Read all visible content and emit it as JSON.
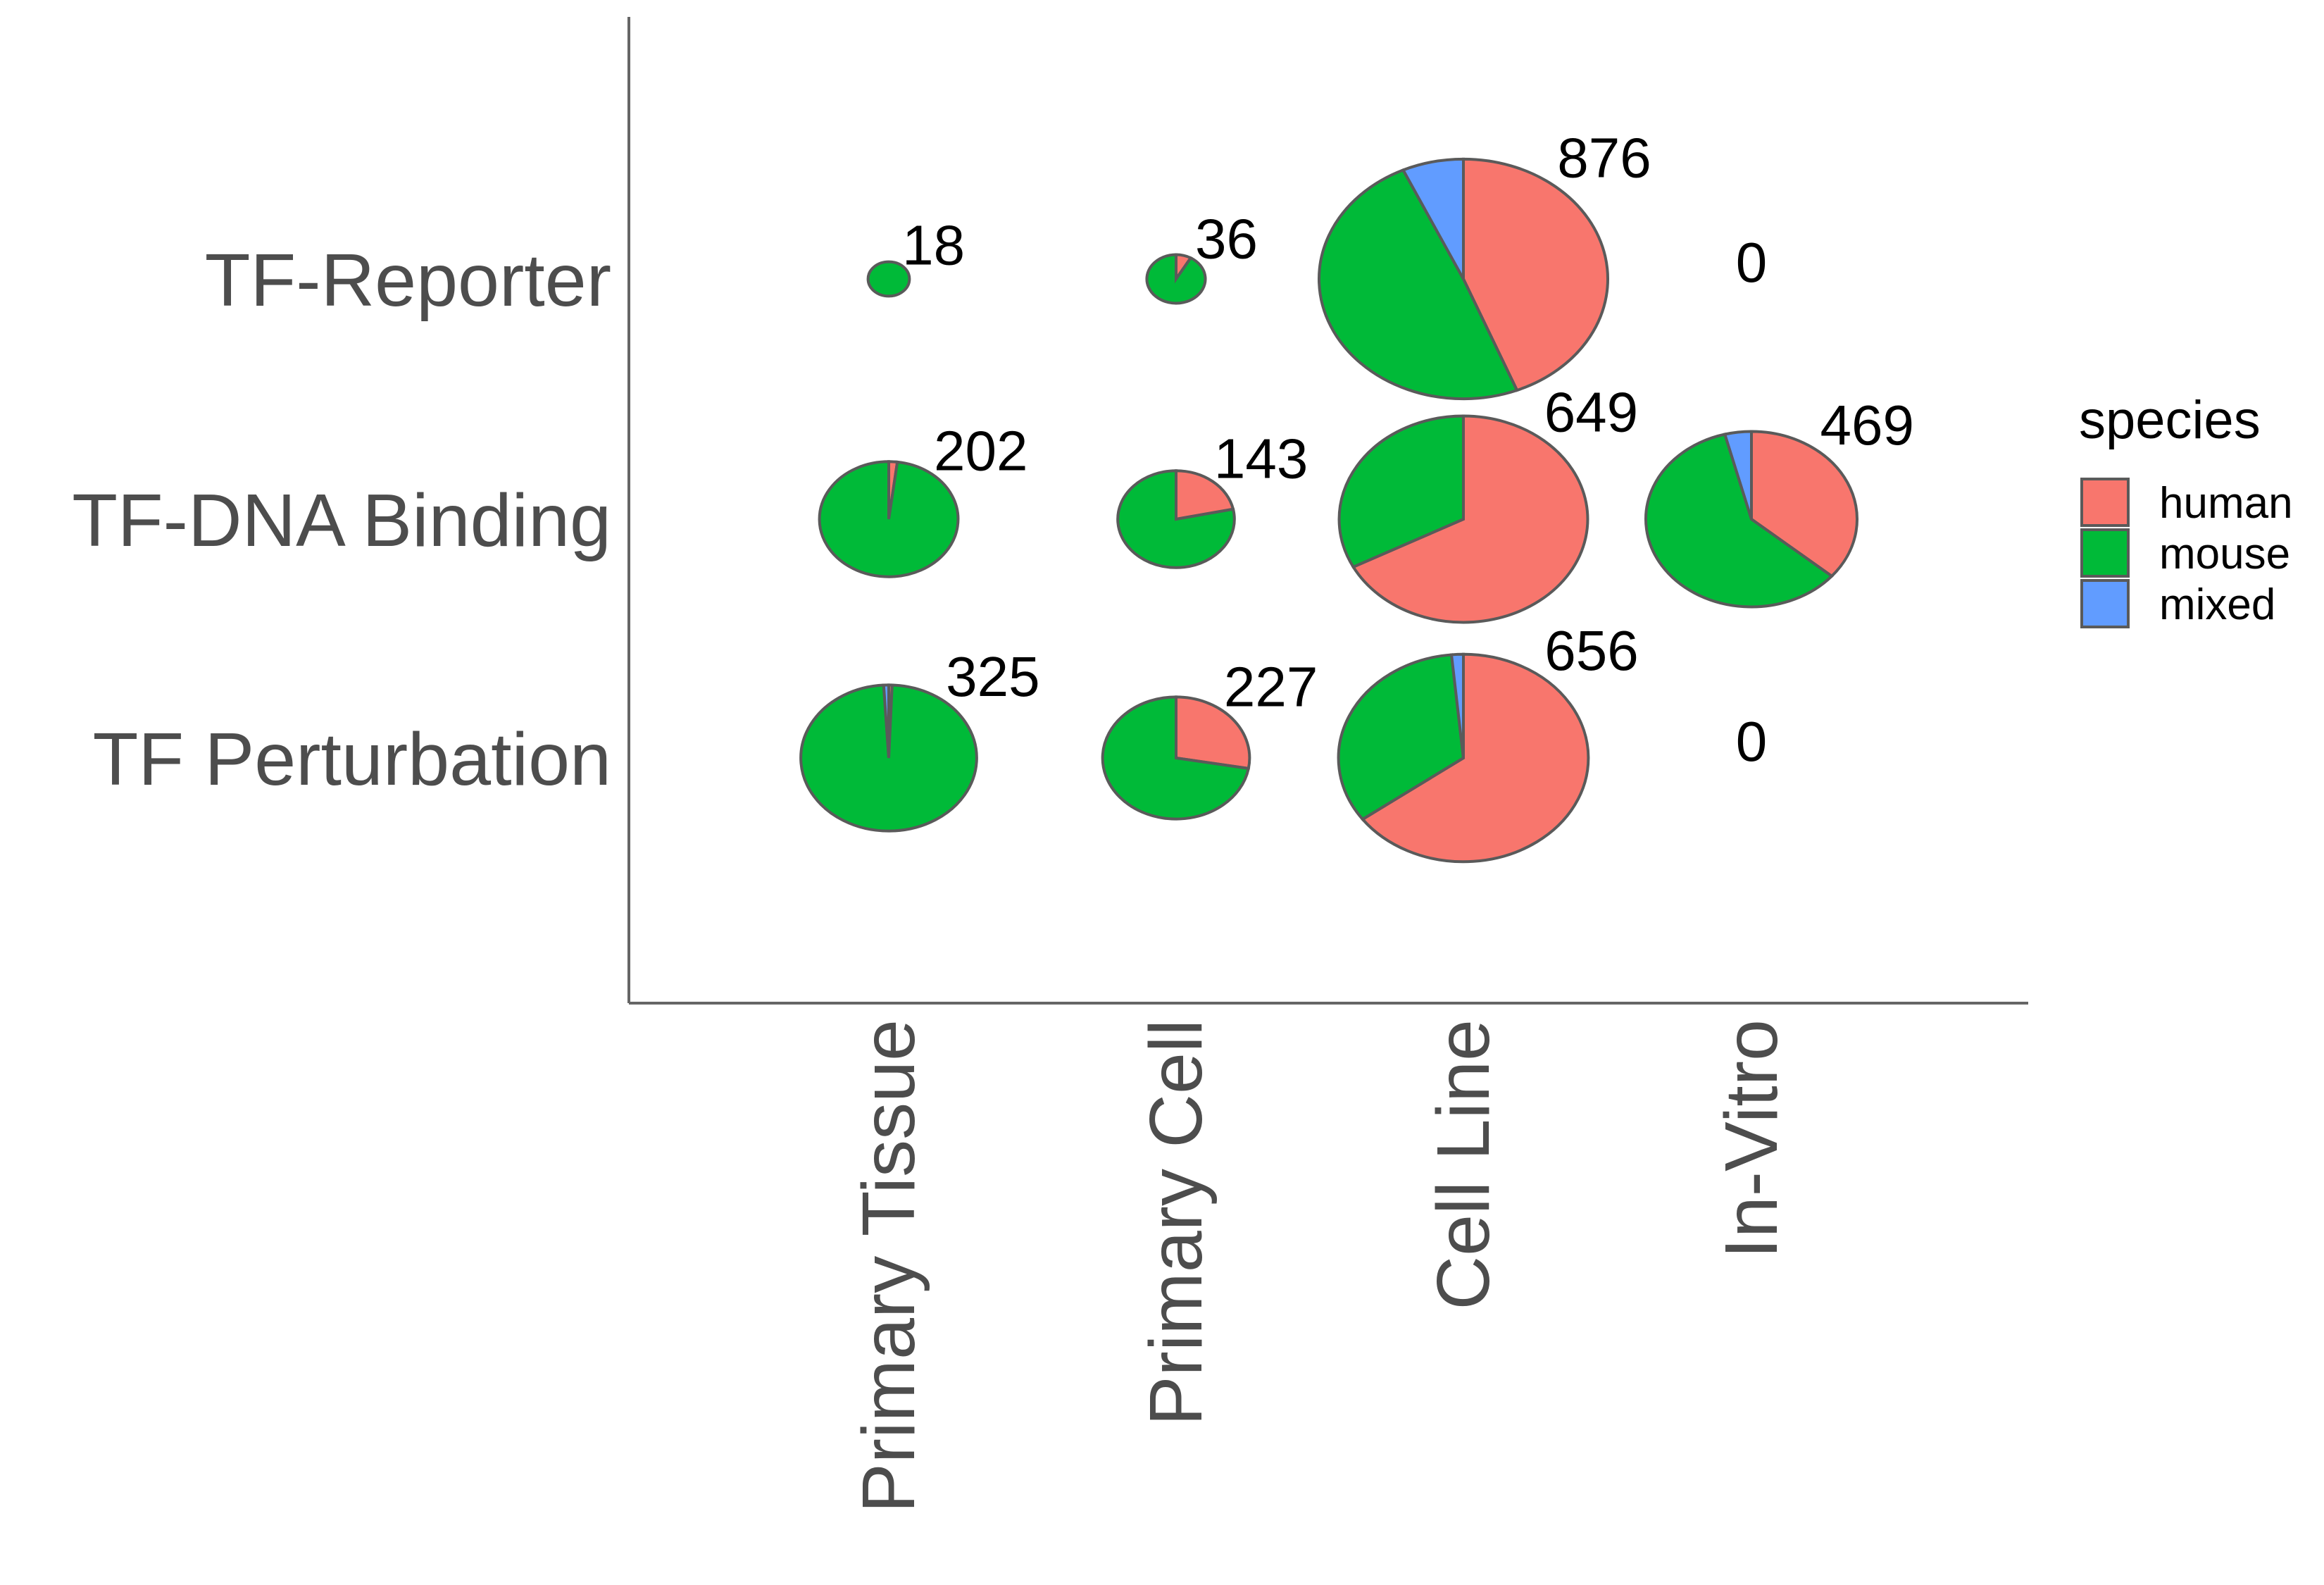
{
  "chart_data": {
    "type": "pie",
    "subtype": "pie-grid",
    "title": "",
    "xlabel": "",
    "ylabel": "",
    "x_categories": [
      "Primary Tissue",
      "Primary Cell",
      "Cell Line",
      "In-Vitro"
    ],
    "y_categories": [
      "TF-Reporter",
      "TF-DNA Binding",
      "TF Perturbation"
    ],
    "legend": {
      "title": "species",
      "position": "right",
      "entries": [
        {
          "name": "human",
          "color": "#F8766D"
        },
        {
          "name": "mouse",
          "color": "#00BA38"
        },
        {
          "name": "mixed",
          "color": "#619CFF"
        }
      ]
    },
    "cells": [
      {
        "row": "TF-Reporter",
        "col": "Primary Tissue",
        "total": 18,
        "human": 0,
        "mouse": 18,
        "mixed": 0
      },
      {
        "row": "TF-Reporter",
        "col": "Primary Cell",
        "total": 36,
        "human": 3,
        "mouse": 33,
        "mixed": 0
      },
      {
        "row": "TF-Reporter",
        "col": "Cell Line",
        "total": 876,
        "human": 385,
        "mouse": 431,
        "mixed": 60
      },
      {
        "row": "TF-Reporter",
        "col": "In-Vitro",
        "total": 0,
        "human": 0,
        "mouse": 0,
        "mixed": 0
      },
      {
        "row": "TF-DNA Binding",
        "col": "Primary Tissue",
        "total": 202,
        "human": 4,
        "mouse": 198,
        "mixed": 0
      },
      {
        "row": "TF-DNA Binding",
        "col": "Primary Cell",
        "total": 143,
        "human": 31,
        "mouse": 112,
        "mixed": 0
      },
      {
        "row": "TF-DNA Binding",
        "col": "Cell Line",
        "total": 649,
        "human": 437,
        "mouse": 212,
        "mixed": 0
      },
      {
        "row": "TF-DNA Binding",
        "col": "In-Vitro",
        "total": 469,
        "human": 170,
        "mouse": 280,
        "mixed": 19
      },
      {
        "row": "TF Perturbation",
        "col": "Primary Tissue",
        "total": 325,
        "human": 2,
        "mouse": 320,
        "mixed": 3
      },
      {
        "row": "TF Perturbation",
        "col": "Primary Cell",
        "total": 227,
        "human": 63,
        "mouse": 164,
        "mixed": 0
      },
      {
        "row": "TF Perturbation",
        "col": "Cell Line",
        "total": 656,
        "human": 426,
        "mouse": 220,
        "mixed": 10
      },
      {
        "row": "TF Perturbation",
        "col": "In-Vitro",
        "total": 0,
        "human": 0,
        "mouse": 0,
        "mixed": 0
      }
    ],
    "grid": false
  }
}
